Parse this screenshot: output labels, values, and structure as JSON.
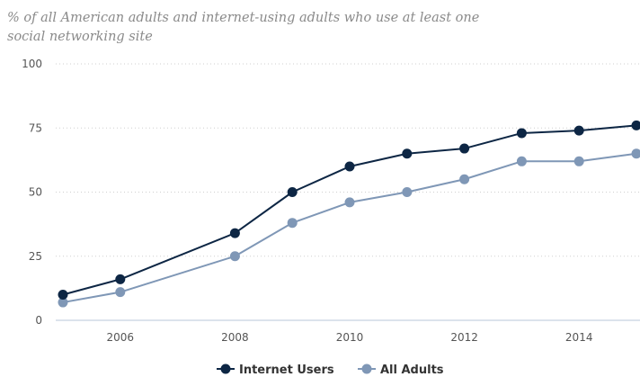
{
  "chart_data": {
    "type": "line",
    "subtitle": "% of all American adults and internet-using adults who use at least one social networking site",
    "x": [
      2005,
      2006,
      2008,
      2009,
      2010,
      2011,
      2012,
      2013,
      2014,
      2015
    ],
    "series": [
      {
        "name": "Internet Users",
        "color": "#0d2644",
        "values": [
          10,
          16,
          34,
          50,
          60,
          65,
          67,
          73,
          74,
          76
        ]
      },
      {
        "name": "All Adults",
        "color": "#7f97b6",
        "values": [
          7,
          11,
          25,
          38,
          46,
          50,
          55,
          62,
          62,
          65
        ]
      }
    ],
    "x_ticks": [
      "2006",
      "2008",
      "2010",
      "2012",
      "2014"
    ],
    "y_ticks": [
      "0",
      "25",
      "50",
      "75",
      "100"
    ],
    "xlim": [
      2005,
      2015
    ],
    "ylim": [
      0,
      100
    ],
    "grid": "horizontal dotted",
    "legend_position": "bottom-center"
  }
}
